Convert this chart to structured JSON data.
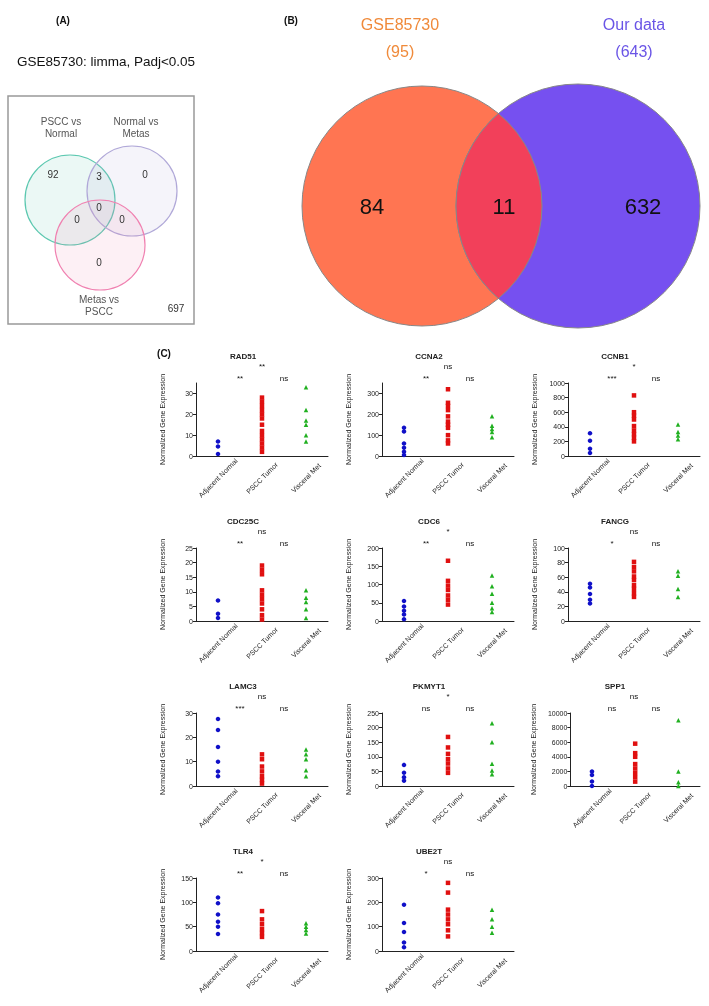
{
  "chart_data": [
    {
      "type": "other",
      "title": "GSE85730: limma, Padj<0.05",
      "annotations": [
        "(A)",
        "PSCC vs Normal",
        "Normal vs Metas",
        "Metas vs PSCC"
      ],
      "categories": [
        null,
        null,
        null,
        null,
        null,
        null,
        null,
        null
      ],
      "values": [
        92,
        3,
        0,
        0,
        0,
        0,
        0,
        697
      ],
      "data_labels": true
    },
    {
      "type": "other",
      "annotations": [
        "(B)",
        "GSE85730 (95)",
        "Our data (643)"
      ],
      "categories": [
        null,
        null,
        null
      ],
      "values": [
        84,
        11,
        632
      ],
      "data_labels": true,
      "colors": [
        "#ff7552",
        "#f2405a",
        "#7650f0"
      ]
    },
    {
      "type": "scatter",
      "title": "RAD51",
      "ylabel": "Normalized Gene Expression",
      "categories": [
        "Adjacent Normal",
        "PSCC Tumor",
        "Visceral Met"
      ],
      "ylim": [
        0,
        35
      ],
      "yticks": [
        0,
        10,
        20,
        30
      ],
      "annotations": [
        "**",
        "ns",
        "**",
        "(C)"
      ],
      "series": [
        {
          "color": "#1010c8",
          "marker": "circle",
          "x": [
            "Adjacent Normal",
            "Adjacent Normal",
            "Adjacent Normal"
          ],
          "values": [
            7,
            4.5,
            1
          ]
        },
        {
          "color": "#e01010",
          "marker": "square",
          "x": [
            "PSCC Tumor",
            "PSCC Tumor",
            "PSCC Tumor",
            "PSCC Tumor",
            "PSCC Tumor",
            "PSCC Tumor",
            "PSCC Tumor",
            "PSCC Tumor",
            "PSCC Tumor",
            "PSCC Tumor",
            "PSCC Tumor",
            "PSCC Tumor",
            "PSCC Tumor"
          ],
          "values": [
            28,
            26,
            24,
            22,
            20,
            18,
            15,
            12,
            10,
            8,
            6,
            4,
            2
          ]
        },
        {
          "color": "#20b020",
          "marker": "triangle",
          "x": [
            "Visceral Met",
            "Visceral Met",
            "Visceral Met",
            "Visceral Met",
            "Visceral Met",
            "Visceral Met"
          ],
          "values": [
            33,
            22,
            17,
            15,
            10,
            7
          ]
        }
      ]
    },
    {
      "type": "scatter",
      "title": "CCNA2",
      "ylabel": "Normalized Gene Expression",
      "categories": [
        "Adjacent Normal",
        "PSCC Tumor",
        "Visceral Met"
      ],
      "ylim": [
        0,
        350
      ],
      "yticks": [
        0,
        100,
        200,
        300
      ],
      "annotations": [
        "**",
        "ns",
        "ns"
      ],
      "series": [
        {
          "color": "#1010c8",
          "marker": "circle",
          "x": [
            "Adjacent Normal",
            "Adjacent Normal",
            "Adjacent Normal",
            "Adjacent Normal",
            "Adjacent Normal",
            "Adjacent Normal"
          ],
          "values": [
            135,
            118,
            60,
            40,
            20,
            5
          ]
        },
        {
          "color": "#e01010",
          "marker": "square",
          "x": [
            "PSCC Tumor",
            "PSCC Tumor",
            "PSCC Tumor",
            "PSCC Tumor",
            "PSCC Tumor",
            "PSCC Tumor",
            "PSCC Tumor",
            "PSCC Tumor",
            "PSCC Tumor",
            "PSCC Tumor",
            "PSCC Tumor"
          ],
          "values": [
            320,
            255,
            240,
            220,
            190,
            165,
            150,
            135,
            100,
            75,
            60
          ]
        },
        {
          "color": "#20b020",
          "marker": "triangle",
          "x": [
            "Visceral Met",
            "Visceral Met",
            "Visceral Met",
            "Visceral Met",
            "Visceral Met"
          ],
          "values": [
            190,
            145,
            130,
            115,
            90
          ]
        }
      ]
    },
    {
      "type": "scatter",
      "title": "CCNB1",
      "ylabel": "Normalized Gene Expression",
      "categories": [
        "Adjacent Normal",
        "PSCC Tumor",
        "Visceral Met"
      ],
      "ylim": [
        0,
        1000
      ],
      "yticks": [
        0,
        200,
        400,
        600,
        800,
        1000
      ],
      "annotations": [
        "***",
        "ns",
        "*"
      ],
      "series": [
        {
          "color": "#1010c8",
          "marker": "circle",
          "x": [
            "Adjacent Normal",
            "Adjacent Normal",
            "Adjacent Normal",
            "Adjacent Normal"
          ],
          "values": [
            310,
            210,
            100,
            40
          ]
        },
        {
          "color": "#e01010",
          "marker": "square",
          "x": [
            "PSCC Tumor",
            "PSCC Tumor",
            "PSCC Tumor",
            "PSCC Tumor",
            "PSCC Tumor",
            "PSCC Tumor",
            "PSCC Tumor",
            "PSCC Tumor",
            "PSCC Tumor"
          ],
          "values": [
            830,
            600,
            550,
            500,
            410,
            350,
            300,
            250,
            200
          ]
        },
        {
          "color": "#20b020",
          "marker": "triangle",
          "x": [
            "Visceral Met",
            "Visceral Met",
            "Visceral Met",
            "Visceral Met"
          ],
          "values": [
            430,
            330,
            280,
            230
          ]
        }
      ]
    },
    {
      "type": "scatter",
      "title": "CDC25C",
      "ylabel": "Normalized Gene Expression",
      "categories": [
        "Adjacent Normal",
        "PSCC Tumor",
        "Visceral Met"
      ],
      "ylim": [
        0,
        25
      ],
      "yticks": [
        0,
        5,
        10,
        15,
        20,
        25
      ],
      "annotations": [
        "**",
        "ns",
        "ns"
      ],
      "series": [
        {
          "color": "#1010c8",
          "marker": "circle",
          "x": [
            "Adjacent Normal",
            "Adjacent Normal",
            "Adjacent Normal"
          ],
          "values": [
            7,
            2.5,
            1
          ]
        },
        {
          "color": "#e01010",
          "marker": "square",
          "x": [
            "PSCC Tumor",
            "PSCC Tumor",
            "PSCC Tumor",
            "PSCC Tumor",
            "PSCC Tumor",
            "PSCC Tumor",
            "PSCC Tumor",
            "PSCC Tumor",
            "PSCC Tumor",
            "PSCC Tumor"
          ],
          "values": [
            19,
            17.5,
            16,
            10.5,
            9,
            7.5,
            6,
            4,
            2,
            0.5
          ]
        },
        {
          "color": "#20b020",
          "marker": "triangle",
          "x": [
            "Visceral Met",
            "Visceral Met",
            "Visceral Met",
            "Visceral Met",
            "Visceral Met"
          ],
          "values": [
            10.5,
            8,
            6.5,
            4,
            1
          ]
        }
      ]
    },
    {
      "type": "scatter",
      "title": "CDC6",
      "ylabel": "Normalized Gene Expression",
      "categories": [
        "Adjacent Normal",
        "PSCC Tumor",
        "Visceral Met"
      ],
      "ylim": [
        0,
        200
      ],
      "yticks": [
        0,
        50,
        100,
        150,
        200
      ],
      "annotations": [
        "**",
        "ns",
        "*"
      ],
      "series": [
        {
          "color": "#1010c8",
          "marker": "circle",
          "x": [
            "Adjacent Normal",
            "Adjacent Normal",
            "Adjacent Normal",
            "Adjacent Normal",
            "Adjacent Normal"
          ],
          "values": [
            55,
            40,
            28,
            18,
            5
          ]
        },
        {
          "color": "#e01010",
          "marker": "square",
          "x": [
            "PSCC Tumor",
            "PSCC Tumor",
            "PSCC Tumor",
            "PSCC Tumor",
            "PSCC Tumor",
            "PSCC Tumor",
            "PSCC Tumor"
          ],
          "values": [
            165,
            110,
            97,
            85,
            70,
            58,
            45
          ]
        },
        {
          "color": "#20b020",
          "marker": "triangle",
          "x": [
            "Visceral Met",
            "Visceral Met",
            "Visceral Met",
            "Visceral Met",
            "Visceral Met",
            "Visceral Met"
          ],
          "values": [
            125,
            95,
            75,
            50,
            35,
            25
          ]
        }
      ]
    },
    {
      "type": "scatter",
      "title": "FANCG",
      "ylabel": "Normalized Gene Expression",
      "categories": [
        "Adjacent Normal",
        "PSCC Tumor",
        "Visceral Met"
      ],
      "ylim": [
        0,
        100
      ],
      "yticks": [
        0,
        20,
        40,
        60,
        80,
        100
      ],
      "annotations": [
        "*",
        "ns",
        "ns"
      ],
      "series": [
        {
          "color": "#1010c8",
          "marker": "circle",
          "x": [
            "Adjacent Normal",
            "Adjacent Normal",
            "Adjacent Normal",
            "Adjacent Normal",
            "Adjacent Normal"
          ],
          "values": [
            51,
            46,
            37,
            29,
            24
          ]
        },
        {
          "color": "#e01010",
          "marker": "square",
          "x": [
            "PSCC Tumor",
            "PSCC Tumor",
            "PSCC Tumor",
            "PSCC Tumor",
            "PSCC Tumor",
            "PSCC Tumor",
            "PSCC Tumor",
            "PSCC Tumor",
            "PSCC Tumor"
          ],
          "values": [
            81,
            74,
            68,
            61,
            56,
            49,
            44,
            38,
            33
          ]
        },
        {
          "color": "#20b020",
          "marker": "triangle",
          "x": [
            "Visceral Met",
            "Visceral Met",
            "Visceral Met",
            "Visceral Met"
          ],
          "values": [
            68,
            62,
            44,
            33
          ]
        }
      ]
    },
    {
      "type": "scatter",
      "title": "LAMC3",
      "ylabel": "Normalized Gene Expression",
      "categories": [
        "Adjacent Normal",
        "PSCC Tumor",
        "Visceral Met"
      ],
      "ylim": [
        0,
        30
      ],
      "yticks": [
        0,
        10,
        20,
        30
      ],
      "annotations": [
        "***",
        "ns",
        "ns"
      ],
      "series": [
        {
          "color": "#1010c8",
          "marker": "circle",
          "x": [
            "Adjacent Normal",
            "Adjacent Normal",
            "Adjacent Normal",
            "Adjacent Normal",
            "Adjacent Normal",
            "Adjacent Normal"
          ],
          "values": [
            27.5,
            23,
            16,
            10,
            6,
            4
          ]
        },
        {
          "color": "#e01010",
          "marker": "square",
          "x": [
            "PSCC Tumor",
            "PSCC Tumor",
            "PSCC Tumor",
            "PSCC Tumor",
            "PSCC Tumor",
            "PSCC Tumor",
            "PSCC Tumor"
          ],
          "values": [
            13,
            11,
            8,
            6,
            4,
            2.5,
            1
          ]
        },
        {
          "color": "#20b020",
          "marker": "triangle",
          "x": [
            "Visceral Met",
            "Visceral Met",
            "Visceral Met",
            "Visceral Met",
            "Visceral Met"
          ],
          "values": [
            15,
            13,
            11,
            6.5,
            4
          ]
        }
      ]
    },
    {
      "type": "scatter",
      "title": "PKMYT1",
      "ylabel": "Normalized Gene Expression",
      "categories": [
        "Adjacent Normal",
        "PSCC Tumor",
        "Visceral Met"
      ],
      "ylim": [
        0,
        250
      ],
      "yticks": [
        0,
        50,
        100,
        150,
        200,
        250
      ],
      "annotations": [
        "ns",
        "ns",
        "*"
      ],
      "series": [
        {
          "color": "#1010c8",
          "marker": "circle",
          "x": [
            "Adjacent Normal",
            "Adjacent Normal",
            "Adjacent Normal",
            "Adjacent Normal"
          ],
          "values": [
            72,
            45,
            30,
            18
          ]
        },
        {
          "color": "#e01010",
          "marker": "square",
          "x": [
            "PSCC Tumor",
            "PSCC Tumor",
            "PSCC Tumor",
            "PSCC Tumor",
            "PSCC Tumor",
            "PSCC Tumor",
            "PSCC Tumor"
          ],
          "values": [
            168,
            132,
            110,
            92,
            77,
            60,
            45
          ]
        },
        {
          "color": "#20b020",
          "marker": "triangle",
          "x": [
            "Visceral Met",
            "Visceral Met",
            "Visceral Met",
            "Visceral Met",
            "Visceral Met"
          ],
          "values": [
            215,
            150,
            76,
            53,
            40
          ]
        }
      ]
    },
    {
      "type": "scatter",
      "title": "SPP1",
      "ylabel": "Normalized Gene Expression",
      "categories": [
        "Adjacent Normal",
        "PSCC Tumor",
        "Visceral Met"
      ],
      "ylim": [
        0,
        10000
      ],
      "yticks": [
        0,
        2000,
        4000,
        6000,
        8000,
        10000
      ],
      "annotations": [
        "ns",
        "ns",
        "ns"
      ],
      "series": [
        {
          "color": "#1010c8",
          "marker": "circle",
          "x": [
            "Adjacent Normal",
            "Adjacent Normal",
            "Adjacent Normal",
            "Adjacent Normal"
          ],
          "values": [
            2000,
            1500,
            600,
            0
          ]
        },
        {
          "color": "#e01010",
          "marker": "square",
          "x": [
            "PSCC Tumor",
            "PSCC Tumor",
            "PSCC Tumor",
            "PSCC Tumor",
            "PSCC Tumor",
            "PSCC Tumor",
            "PSCC Tumor",
            "PSCC Tumor"
          ],
          "values": [
            5800,
            4500,
            4000,
            3000,
            2400,
            1800,
            1200,
            600
          ]
        },
        {
          "color": "#20b020",
          "marker": "triangle",
          "x": [
            "Visceral Met",
            "Visceral Met",
            "Visceral Met",
            "Visceral Met"
          ],
          "values": [
            9000,
            2000,
            500,
            0
          ]
        }
      ]
    },
    {
      "type": "scatter",
      "title": "TLR4",
      "ylabel": "Normalized Gene Expression",
      "categories": [
        "Adjacent Normal",
        "PSCC Tumor",
        "Visceral Met"
      ],
      "ylim": [
        0,
        150
      ],
      "yticks": [
        0,
        50,
        100,
        150
      ],
      "annotations": [
        "**",
        "ns",
        "*"
      ],
      "series": [
        {
          "color": "#1010c8",
          "marker": "circle",
          "x": [
            "Adjacent Normal",
            "Adjacent Normal",
            "Adjacent Normal",
            "Adjacent Normal",
            "Adjacent Normal",
            "Adjacent Normal"
          ],
          "values": [
            110,
            98,
            75,
            60,
            50,
            35
          ]
        },
        {
          "color": "#e01010",
          "marker": "square",
          "x": [
            "PSCC Tumor",
            "PSCC Tumor",
            "PSCC Tumor",
            "PSCC Tumor",
            "PSCC Tumor",
            "PSCC Tumor"
          ],
          "values": [
            82,
            65,
            55,
            45,
            37,
            29
          ]
        },
        {
          "color": "#20b020",
          "marker": "triangle",
          "x": [
            "Visceral Met",
            "Visceral Met",
            "Visceral Met",
            "Visceral Met"
          ],
          "values": [
            57,
            50,
            43,
            36
          ]
        }
      ]
    },
    {
      "type": "scatter",
      "title": "UBE2T",
      "ylabel": "Normalized Gene Expression",
      "categories": [
        "Adjacent Normal",
        "PSCC Tumor",
        "Visceral Met"
      ],
      "ylim": [
        0,
        300
      ],
      "yticks": [
        0,
        100,
        200,
        300
      ],
      "annotations": [
        "*",
        "ns",
        "ns"
      ],
      "series": [
        {
          "color": "#1010c8",
          "marker": "circle",
          "x": [
            "Adjacent Normal",
            "Adjacent Normal",
            "Adjacent Normal",
            "Adjacent Normal",
            "Adjacent Normal"
          ],
          "values": [
            190,
            115,
            78,
            35,
            15
          ]
        },
        {
          "color": "#e01010",
          "marker": "square",
          "x": [
            "PSCC Tumor",
            "PSCC Tumor",
            "PSCC Tumor",
            "PSCC Tumor",
            "PSCC Tumor",
            "PSCC Tumor",
            "PSCC Tumor",
            "PSCC Tumor"
          ],
          "values": [
            280,
            240,
            170,
            150,
            130,
            110,
            85,
            60
          ]
        },
        {
          "color": "#20b020",
          "marker": "triangle",
          "x": [
            "Visceral Met",
            "Visceral Met",
            "Visceral Met",
            "Visceral Met"
          ],
          "values": [
            170,
            130,
            100,
            75
          ]
        }
      ]
    }
  ]
}
